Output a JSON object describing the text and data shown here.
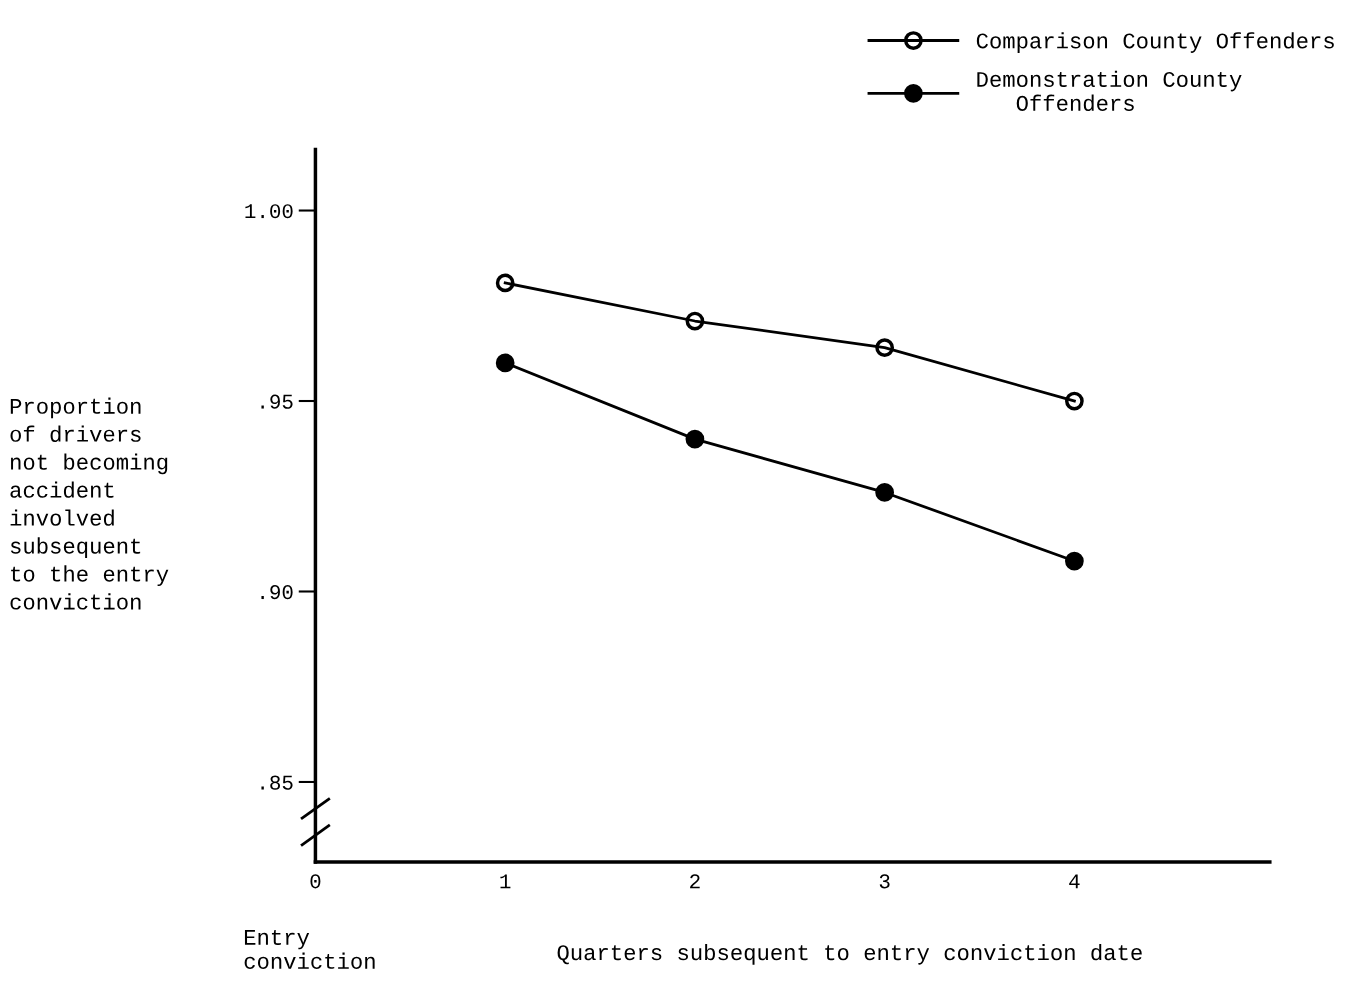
{
  "chart_data": {
    "type": "line",
    "ylabel": "Proportion\nof drivers\nnot becoming\naccident\ninvolved\nsubsequent\nto the entry\nconviction",
    "xlabel": "Quarters subsequent to entry conviction date",
    "annotations": [
      "Entry\nconviction"
    ],
    "x": [
      1,
      2,
      3,
      4
    ],
    "series": [
      {
        "name": "Comparison County Offenders",
        "color": "#000000",
        "values": [
          0.981,
          0.971,
          0.964,
          0.95
        ]
      },
      {
        "name": "Demonstration County\n   Offenders",
        "color": "#000000",
        "values": [
          0.96,
          0.94,
          0.926,
          0.908
        ]
      }
    ],
    "xlim": [
      0,
      5.03
    ],
    "xticks": [
      0,
      1,
      2,
      3,
      4
    ],
    "ylim": [
      0.829,
      1.016
    ],
    "yticks": [
      {
        "value": 0.85,
        "label": ".85"
      },
      {
        "value": 0.9,
        "label": ".90"
      },
      {
        "value": 0.95,
        "label": ".95"
      },
      {
        "value": 1.0,
        "label": "1.00"
      }
    ],
    "grid": false,
    "legend": "top right",
    "marker": "circle",
    "line_style": "solid"
  }
}
